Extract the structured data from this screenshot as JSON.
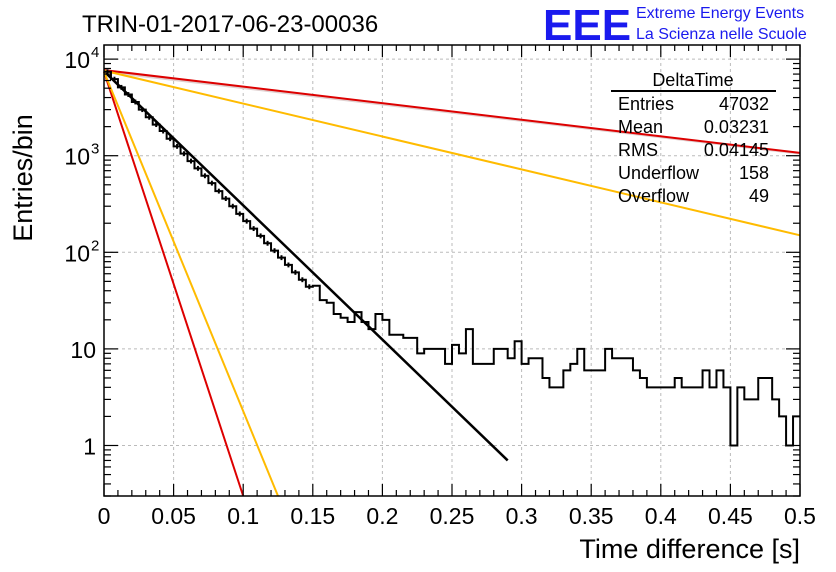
{
  "chart_data": {
    "type": "line",
    "title": "TRIN-01-2017-06-23-00036",
    "xlabel": "Time difference [s]",
    "ylabel": "Entries/bin",
    "xlim": [
      0,
      0.5
    ],
    "ylim": [
      0.3,
      14000
    ],
    "y_scale": "log",
    "grid": true,
    "x_ticks": [
      {
        "value": 0,
        "label": "0"
      },
      {
        "value": 0.05,
        "label": "0.05"
      },
      {
        "value": 0.1,
        "label": "0.1"
      },
      {
        "value": 0.15,
        "label": "0.15"
      },
      {
        "value": 0.2,
        "label": "0.2"
      },
      {
        "value": 0.25,
        "label": "0.25"
      },
      {
        "value": 0.3,
        "label": "0.3"
      },
      {
        "value": 0.35,
        "label": "0.35"
      },
      {
        "value": 0.4,
        "label": "0.4"
      },
      {
        "value": 0.45,
        "label": "0.45"
      },
      {
        "value": 0.5,
        "label": "0.5"
      }
    ],
    "y_ticks": [
      {
        "value": 1,
        "label": "1"
      },
      {
        "value": 10,
        "label": "10"
      },
      {
        "value": 100,
        "label": "10",
        "exp": "2"
      },
      {
        "value": 1000,
        "label": "10",
        "exp": "3"
      },
      {
        "value": 10000,
        "label": "10",
        "exp": "4"
      }
    ],
    "histogram": {
      "bin_width": 0.005,
      "color": "#000000",
      "counts": [
        7400,
        6200,
        5100,
        4300,
        3600,
        3000,
        2500,
        2100,
        1800,
        1500,
        1250,
        1050,
        880,
        740,
        620,
        520,
        430,
        360,
        300,
        250,
        210,
        176,
        148,
        124,
        104,
        88,
        74,
        62,
        52,
        44,
        45,
        32,
        30,
        23,
        21,
        19,
        24,
        19,
        16,
        23,
        20,
        14,
        14,
        13,
        13,
        9,
        10,
        10,
        10,
        7,
        11,
        9,
        16,
        7,
        7,
        7,
        10,
        10,
        8,
        12,
        7,
        8,
        8,
        5,
        4,
        4,
        6,
        7,
        10,
        6,
        6,
        6,
        10,
        8,
        8,
        8,
        6,
        5,
        4,
        4,
        4,
        4,
        5,
        4,
        4,
        4,
        6,
        4,
        6,
        4,
        1,
        4,
        3,
        3,
        5,
        5,
        3,
        2,
        1,
        2
      ]
    },
    "series": [
      {
        "kind": "fit",
        "color": "#000000",
        "x": [
          0,
          0.29
        ],
        "y": [
          7500,
          0.7
        ]
      },
      {
        "kind": "band",
        "color": "#e0d0d0",
        "x": [
          0,
          0.5
        ],
        "y": [
          7400,
          1050
        ]
      },
      {
        "kind": "band",
        "color": "#dd0000",
        "x": [
          0,
          0.1
        ],
        "y": [
          7400,
          0.3
        ]
      },
      {
        "kind": "band",
        "color": "#dd0000",
        "x": [
          0,
          0.5
        ],
        "y": [
          7700,
          1070
        ]
      },
      {
        "kind": "band",
        "color": "#ffbb00",
        "x": [
          0,
          0.125
        ],
        "y": [
          7400,
          0.3
        ]
      },
      {
        "kind": "band",
        "color": "#ffbb00",
        "x": [
          0,
          0.5
        ],
        "y": [
          7600,
          150
        ]
      }
    ],
    "stats_box": {
      "title": "DeltaTime",
      "rows": [
        {
          "label": "Entries",
          "value": "47032"
        },
        {
          "label": "Mean",
          "value": "0.03231"
        },
        {
          "label": "RMS",
          "value": "0.04145"
        },
        {
          "label": "Underflow",
          "value": "158"
        },
        {
          "label": "Overflow",
          "value": "49"
        }
      ]
    }
  },
  "logo": {
    "mark": "EEE",
    "line1": "Extreme Energy Events",
    "line2": "La Scienza nelle Scuole",
    "color": "#1a1aee"
  }
}
